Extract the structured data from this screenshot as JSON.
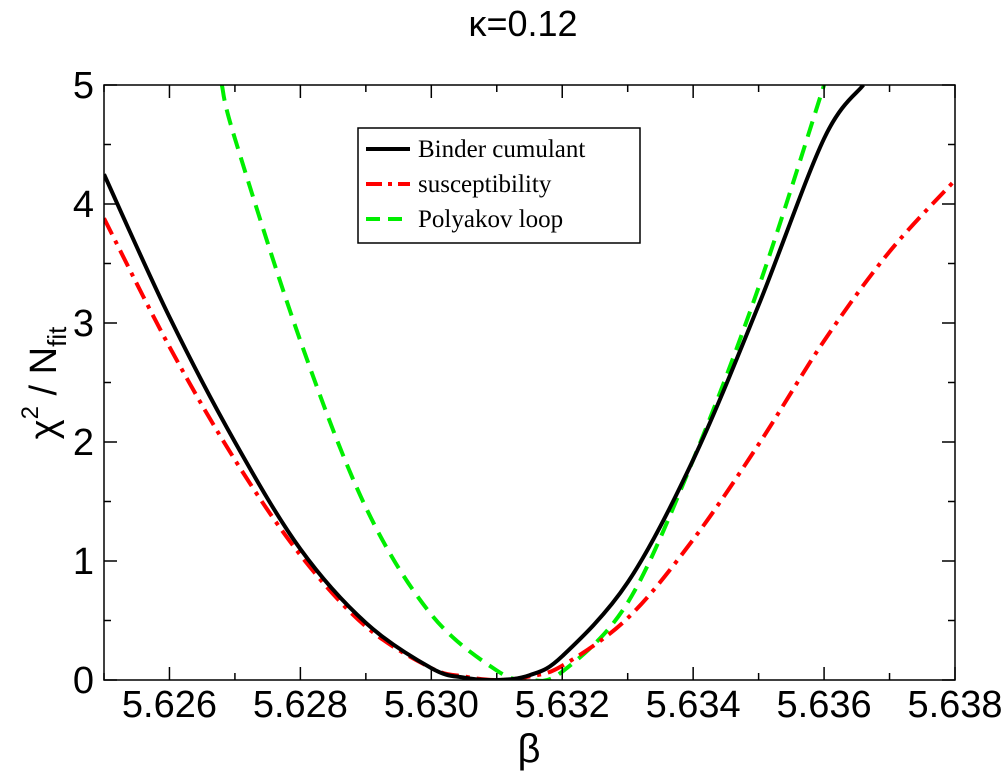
{
  "chart_data": {
    "type": "line",
    "title": "κ=0.12",
    "xlabel": "β",
    "ylabel": {
      "chi": "χ",
      "sup": "2",
      "mid": " / N",
      "sub": "fit"
    },
    "xlim": [
      5.625,
      5.638
    ],
    "ylim": [
      0,
      5
    ],
    "xticks": [
      5.626,
      5.628,
      5.63,
      5.632,
      5.634,
      5.636,
      5.638
    ],
    "xtick_labels": [
      "5.626",
      "5.628",
      "5.630",
      "5.632",
      "5.634",
      "5.636",
      "5.638"
    ],
    "yticks": [
      0,
      1,
      2,
      3,
      4,
      5
    ],
    "ytick_labels": [
      "0",
      "1",
      "2",
      "3",
      "4",
      "5"
    ],
    "legend_position": "top-center",
    "series": [
      {
        "name": "Binder cumulant",
        "color": "#000000",
        "style": "solid",
        "x": [
          5.625,
          5.626,
          5.627,
          5.628,
          5.629,
          5.63,
          5.6305,
          5.631,
          5.6315,
          5.632,
          5.633,
          5.634,
          5.635,
          5.636,
          5.6366
        ],
        "y": [
          4.25,
          3.05,
          2.0,
          1.1,
          0.48,
          0.1,
          0.02,
          0.0,
          0.04,
          0.2,
          0.82,
          1.85,
          3.15,
          4.55,
          5.0
        ]
      },
      {
        "name": "susceptibility",
        "color": "#ff0000",
        "style": "dashdot",
        "x": [
          5.625,
          5.626,
          5.627,
          5.628,
          5.629,
          5.63,
          5.6305,
          5.631,
          5.6315,
          5.632,
          5.633,
          5.634,
          5.635,
          5.636,
          5.637,
          5.638
        ],
        "y": [
          3.88,
          2.8,
          1.85,
          1.05,
          0.45,
          0.1,
          0.03,
          0.0,
          0.03,
          0.12,
          0.52,
          1.18,
          1.98,
          2.85,
          3.6,
          4.2
        ]
      },
      {
        "name": "Polyakov loop",
        "color": "#00ee00",
        "style": "dashed",
        "x": [
          5.6268,
          5.627,
          5.628,
          5.629,
          5.63,
          5.631,
          5.6315,
          5.632,
          5.633,
          5.634,
          5.635,
          5.636
        ],
        "y": [
          5.0,
          4.55,
          2.85,
          1.45,
          0.55,
          0.08,
          0.0,
          0.07,
          0.65,
          1.85,
          3.3,
          5.0
        ]
      }
    ]
  }
}
